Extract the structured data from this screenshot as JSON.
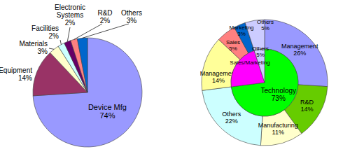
{
  "chart_data": [
    {
      "type": "pie",
      "categories": [
        "Device Mfg",
        "Equipment",
        "Materials",
        "Facilities",
        "Electronic Systems",
        "R&D",
        "Others"
      ],
      "values": [
        74,
        14,
        3,
        2,
        2,
        2,
        3
      ],
      "value_labels": [
        "74%",
        "14%",
        "3%",
        "2%",
        "2%",
        "2%",
        "3%"
      ],
      "colors": [
        "#9999ff",
        "#993366",
        "#ffffcc",
        "#ccffff",
        "#660066",
        "#ff8080",
        "#0066cc"
      ],
      "data_labels": true
    },
    {
      "type": "sunburst",
      "data_labels": true,
      "series": [
        {
          "categories": [
            "Technology",
            "Sales/Marketing",
            "Others"
          ],
          "values": [
            73,
            22,
            5
          ],
          "value_labels": [
            "73%",
            null,
            "5%"
          ],
          "colors": [
            "#00ff00",
            "#ff00ff",
            "#ccccff"
          ]
        },
        {
          "categories": [
            "Management",
            "R&D",
            "Manufacturing",
            "Others",
            "Management",
            "Sales",
            "Marketing",
            "Others"
          ],
          "values": [
            26,
            14,
            11,
            22,
            14,
            5,
            3,
            5
          ],
          "value_labels": [
            "26%",
            "14%",
            "11%",
            "22%",
            "14%",
            "5%",
            "3%",
            "5%"
          ],
          "colors": [
            "#9999ff",
            "#66cc00",
            "#ffffcc",
            "#ccffff",
            "#ffff99",
            "#ff8080",
            "#0066cc",
            "#ccccff"
          ]
        }
      ]
    }
  ]
}
